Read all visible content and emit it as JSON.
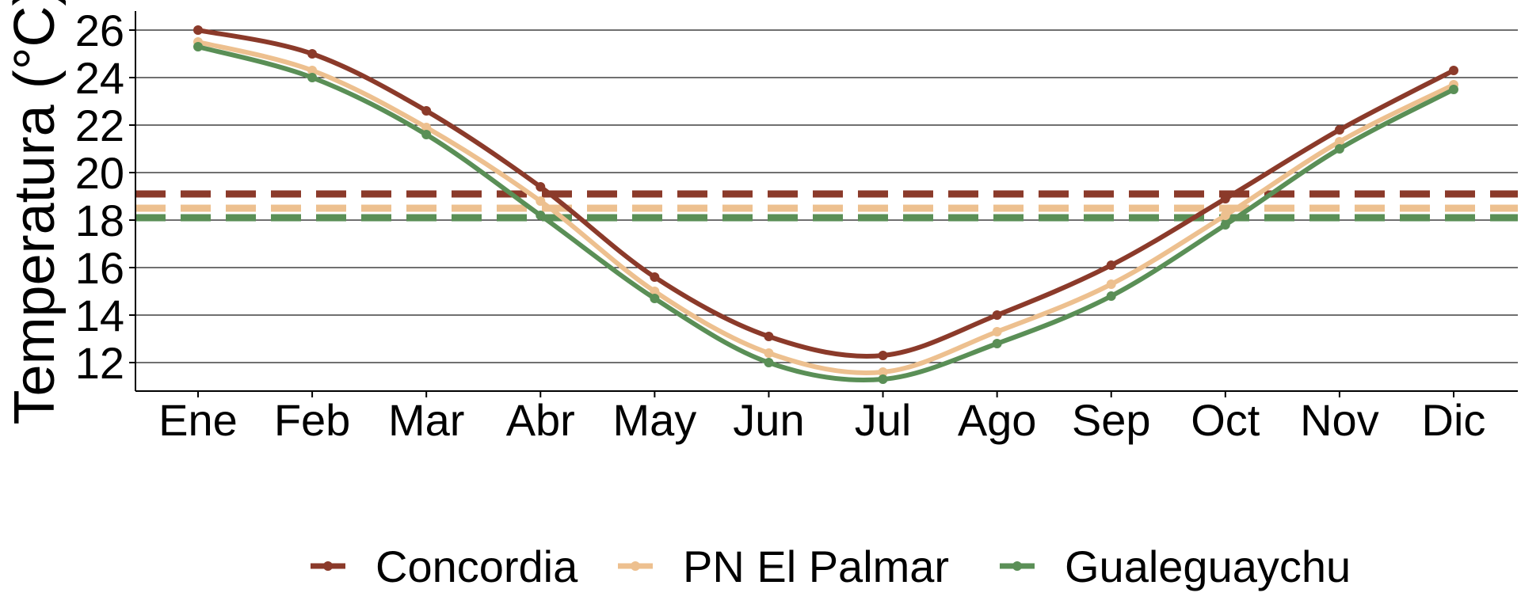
{
  "chart_data": {
    "type": "line",
    "title": "",
    "xlabel": "",
    "ylabel": "Temperatura (°C)",
    "categories": [
      "Ene",
      "Feb",
      "Mar",
      "Abr",
      "May",
      "Jun",
      "Jul",
      "Ago",
      "Sep",
      "Oct",
      "Nov",
      "Dic"
    ],
    "ylim": [
      10.8,
      26.8
    ],
    "yticks": [
      12,
      14,
      16,
      18,
      20,
      22,
      24,
      26
    ],
    "grid": "horizontal major",
    "legend_position": "bottom",
    "series": [
      {
        "name": "Concordia",
        "color": "#8B3A2A",
        "values": [
          26.0,
          25.0,
          22.6,
          19.4,
          15.6,
          13.1,
          12.3,
          14.0,
          16.1,
          18.9,
          21.8,
          24.3
        ],
        "mean": 19.1
      },
      {
        "name": "PN El Palmar",
        "color": "#EDC08F",
        "values": [
          25.5,
          24.3,
          21.9,
          18.8,
          15.0,
          12.4,
          11.6,
          13.3,
          15.3,
          18.2,
          21.3,
          23.7
        ],
        "mean": 18.5
      },
      {
        "name": "Gualeguaychu",
        "color": "#5A8F56",
        "values": [
          25.3,
          24.0,
          21.6,
          18.2,
          14.7,
          12.0,
          11.3,
          12.8,
          14.8,
          17.8,
          21.0,
          23.5
        ],
        "mean": 18.1
      }
    ]
  }
}
